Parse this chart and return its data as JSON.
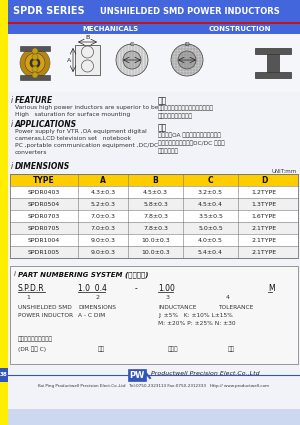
{
  "title_left": "SPDR SERIES",
  "title_right": "UNSHIELDED SMD POWER INDUCTORS",
  "sub_left": "MECHANICALS",
  "sub_right": "CONSTRUCTION",
  "header_bg": "#4466dd",
  "red_line": "#cc1111",
  "yellow_left": "#ffee00",
  "body_bg": "#eef0fa",
  "table_header_bg": "#ffcc00",
  "page_bg": "#ccd8f0",
  "feature_title": "FEATURE",
  "feature_text1": "Various high power inductors are superior to be",
  "feature_text2": "High   saturation for surface mounting",
  "app_title": "APPLICATIONS",
  "app_text1": "Power supply for VTR ,OA equipment digital",
  "app_text2": "cameras,LCD television set   notebook",
  "app_text3": "PC ,portable communication equipment ,DC/DC",
  "app_text4": "converters",
  "cn_feature_title": "特性",
  "cn_feature1": "具备高功率、强力高饱和电感、赤山",
  "cn_feature2": "小、小型表面化之特型",
  "cn_app_title": "用途",
  "cn_app1": "录影机、OA 设备、数戟相机、笔记本",
  "cn_app2": "电脑、小型通信设备、DC/DC 变频器",
  "cn_app3": "之电源供应器",
  "dim_title": "DIMENSIONS",
  "dim_unit": "UNIT:mm",
  "table_headers": [
    "TYPE",
    "A",
    "B",
    "C",
    "D"
  ],
  "table_data": [
    [
      "SPDR0403",
      "4.3±0.3",
      "4.5±0.3",
      "3.2±0.5",
      "1.2TYPE"
    ],
    [
      "SPDR0504",
      "5.2±0.3",
      "5.8±0.3",
      "4.5±0.4",
      "1.3TYPE"
    ],
    [
      "SPDR0703",
      "7.0±0.3",
      "7.8±0.3",
      "3.5±0.5",
      "1.6TYPE"
    ],
    [
      "SPDR0705",
      "7.0±0.3",
      "7.8±0.3",
      "5.0±0.5",
      "2.1TYPE"
    ],
    [
      "SPDR1004",
      "9.0±0.3",
      "10.0±0.3",
      "4.0±0.5",
      "2.1TYPE"
    ],
    [
      "SPDR1005",
      "9.0±0.3",
      "10.0±0.3",
      "5.4±0.4",
      "2.1TYPE"
    ]
  ],
  "pns_title": "PART NUMBERING SYSTEM (品名规定)",
  "cn_pns_line1": "开磁路贴片式功率电感",
  "cn_pns_line2": "(DR 型式 C)",
  "cn_pns3": "尺寸",
  "cn_pns4": "电感量",
  "cn_pns5": "公差",
  "footer_text": "Productwell Precision Elect.Co.,Ltd",
  "footer_contact": "Kai Ping Productwell Precision Elect.Co.,Ltd   Tel:0750-2323113 Fax:0750-2312333   Http:// www.productwell.com",
  "page_num": "38"
}
